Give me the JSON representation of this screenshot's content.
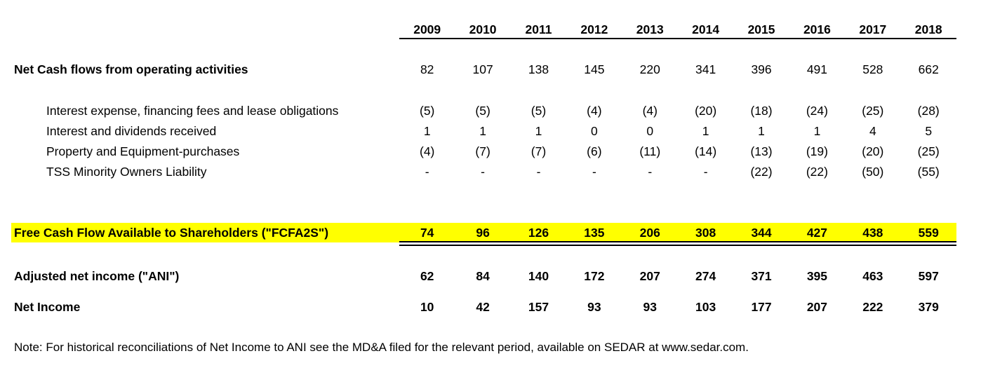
{
  "years": [
    "2009",
    "2010",
    "2011",
    "2012",
    "2013",
    "2014",
    "2015",
    "2016",
    "2017",
    "2018"
  ],
  "rows": {
    "operating": {
      "label": "Net Cash flows from operating activities",
      "values": [
        "82",
        "107",
        "138",
        "145",
        "220",
        "341",
        "396",
        "491",
        "528",
        "662"
      ]
    },
    "interest_expense": {
      "label": "Interest expense, financing fees and lease obligations",
      "values": [
        "(5)",
        "(5)",
        "(5)",
        "(4)",
        "(4)",
        "(20)",
        "(18)",
        "(24)",
        "(25)",
        "(28)"
      ]
    },
    "interest_received": {
      "label": "Interest and dividends received",
      "values": [
        "1",
        "1",
        "1",
        "0",
        "0",
        "1",
        "1",
        "1",
        "4",
        "5"
      ]
    },
    "ppe": {
      "label": "Property and Equipment-purchases",
      "values": [
        "(4)",
        "(7)",
        "(7)",
        "(6)",
        "(11)",
        "(14)",
        "(13)",
        "(19)",
        "(20)",
        "(25)"
      ]
    },
    "tss": {
      "label": "TSS Minority Owners Liability",
      "values": [
        "-",
        "-",
        "-",
        "-",
        "-",
        "-",
        "(22)",
        "(22)",
        "(50)",
        "(55)"
      ]
    },
    "fcfa2s": {
      "label": "Free Cash Flow Available to Shareholders (\"FCFA2S\")",
      "values": [
        "74",
        "96",
        "126",
        "135",
        "206",
        "308",
        "344",
        "427",
        "438",
        "559"
      ]
    },
    "ani": {
      "label": "Adjusted net income (\"ANI\")",
      "values": [
        "62",
        "84",
        "140",
        "172",
        "207",
        "274",
        "371",
        "395",
        "463",
        "597"
      ]
    },
    "net_income": {
      "label": "Net Income",
      "values": [
        "10",
        "42",
        "157",
        "93",
        "93",
        "103",
        "177",
        "207",
        "222",
        "379"
      ]
    }
  },
  "note": "Note: For historical reconciliations of Net Income to ANI see the MD&A filed for the relevant period, available on SEDAR at www.sedar.com.",
  "colors": {
    "highlight": "#ffff00"
  }
}
